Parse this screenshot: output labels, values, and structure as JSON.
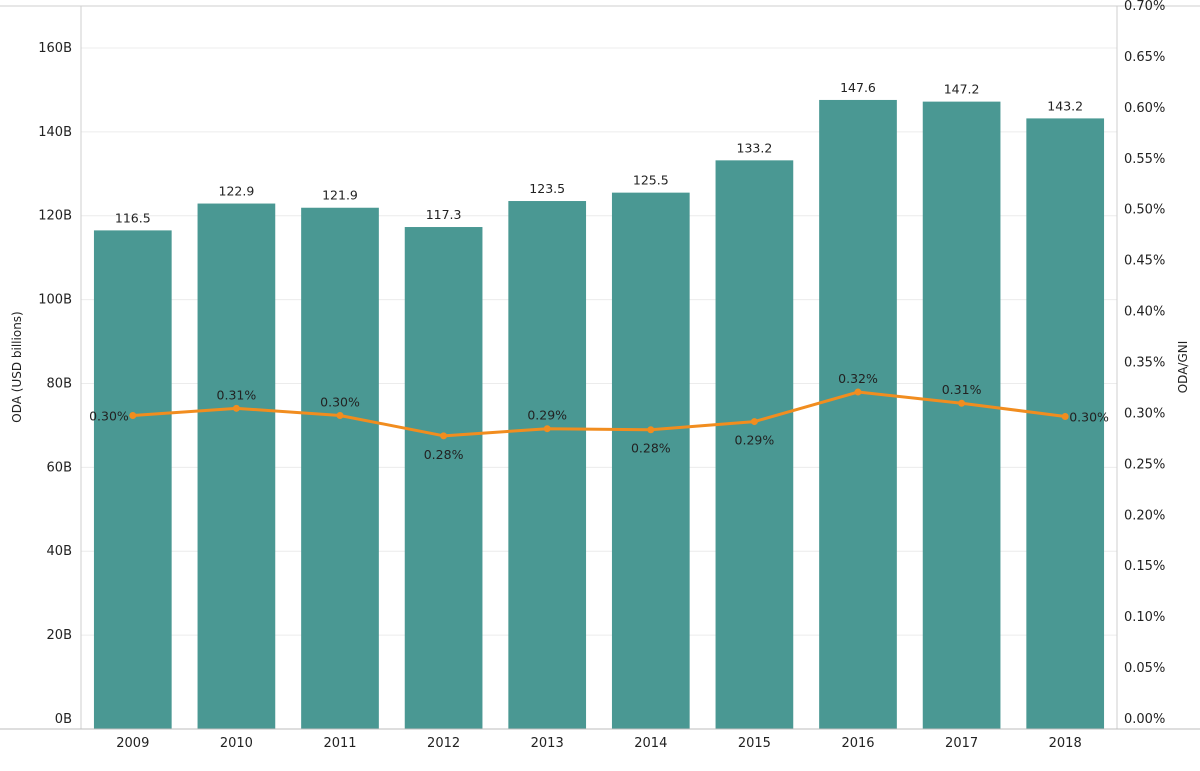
{
  "chart_data": {
    "type": "bar",
    "categories": [
      "2009",
      "2010",
      "2011",
      "2012",
      "2013",
      "2014",
      "2015",
      "2016",
      "2017",
      "2018"
    ],
    "series": [
      {
        "type": "bar",
        "axis": "left",
        "values": [
          116.5,
          122.9,
          121.9,
          117.3,
          123.5,
          125.5,
          133.2,
          147.6,
          147.2,
          143.2
        ],
        "labels": [
          "116.5",
          "122.9",
          "121.9",
          "117.3",
          "123.5",
          "125.5",
          "133.2",
          "147.6",
          "147.2",
          "143.2"
        ],
        "color": "#4a9893"
      },
      {
        "type": "line",
        "axis": "right",
        "values": [
          0.298,
          0.305,
          0.298,
          0.278,
          0.285,
          0.284,
          0.292,
          0.321,
          0.31,
          0.297
        ],
        "labels": [
          "0.30%",
          "0.31%",
          "0.30%",
          "0.28%",
          "0.29%",
          "0.28%",
          "0.29%",
          "0.32%",
          "0.31%",
          "0.30%"
        ],
        "color": "#f18d1f"
      }
    ],
    "ylabel": "ODA (USD billions)",
    "y2label": "ODA/GNI",
    "ylim": [
      0,
      170
    ],
    "y2lim": [
      0,
      0.7
    ],
    "yticks": [
      "0B",
      "20B",
      "40B",
      "60B",
      "80B",
      "100B",
      "120B",
      "140B",
      "160B"
    ],
    "y2ticks": [
      "0.00%",
      "0.05%",
      "0.10%",
      "0.15%",
      "0.20%",
      "0.25%",
      "0.30%",
      "0.35%",
      "0.40%",
      "0.45%",
      "0.50%",
      "0.55%",
      "0.60%",
      "0.65%",
      "0.70%"
    ],
    "grid": true,
    "legend": "none"
  }
}
